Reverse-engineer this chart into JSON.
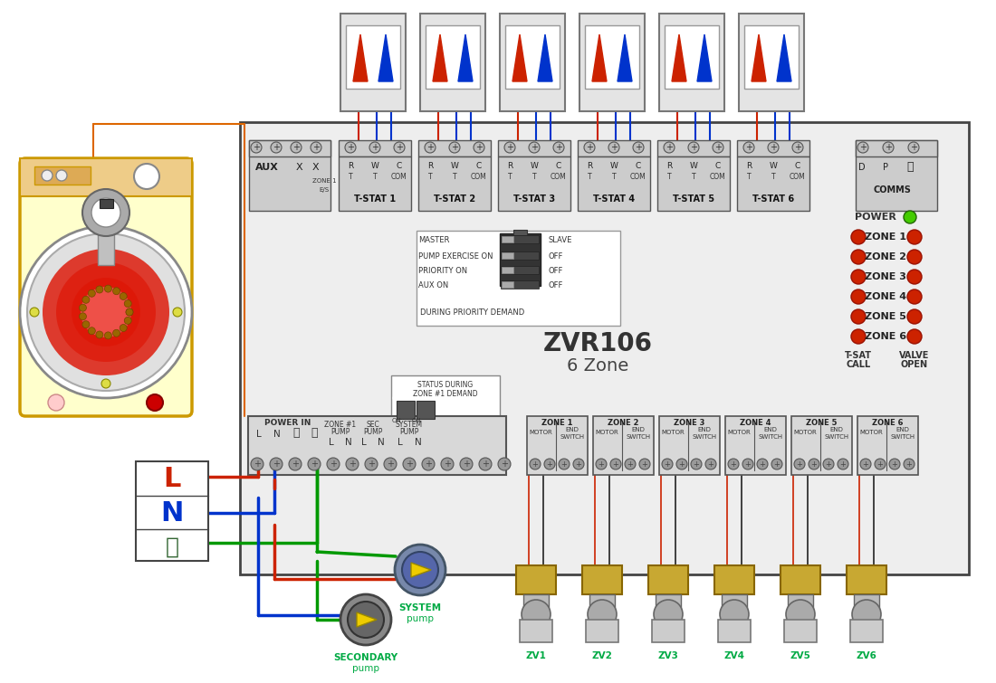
{
  "bg": "#ffffff",
  "board_fc": "#eeeeee",
  "board_ec": "#444444",
  "red": "#cc2200",
  "blue": "#0033cc",
  "green": "#009900",
  "cyan_green": "#00aa44",
  "orange": "#dd6600",
  "yellow_bg": "#ffffcc",
  "yellow_border": "#cc9900",
  "gold": "#c8a832",
  "gray_term": "#888888",
  "gray_dark": "#555555",
  "gray_light": "#cccccc",
  "gray_mid": "#aaaaaa",
  "power_green": "#44cc00",
  "dark_red": "#991100",
  "zone_labels": [
    "ZONE 1",
    "ZONE 2",
    "ZONE 3",
    "ZONE 4",
    "ZONE 5",
    "ZONE 6"
  ],
  "tstat_labels": [
    "T-STAT 1",
    "T-STAT 2",
    "T-STAT 3",
    "T-STAT 4",
    "T-STAT 5",
    "T-STAT 6"
  ],
  "zv_labels": [
    "ZV1",
    "ZV2",
    "ZV3",
    "ZV4",
    "ZV5",
    "ZV6"
  ]
}
